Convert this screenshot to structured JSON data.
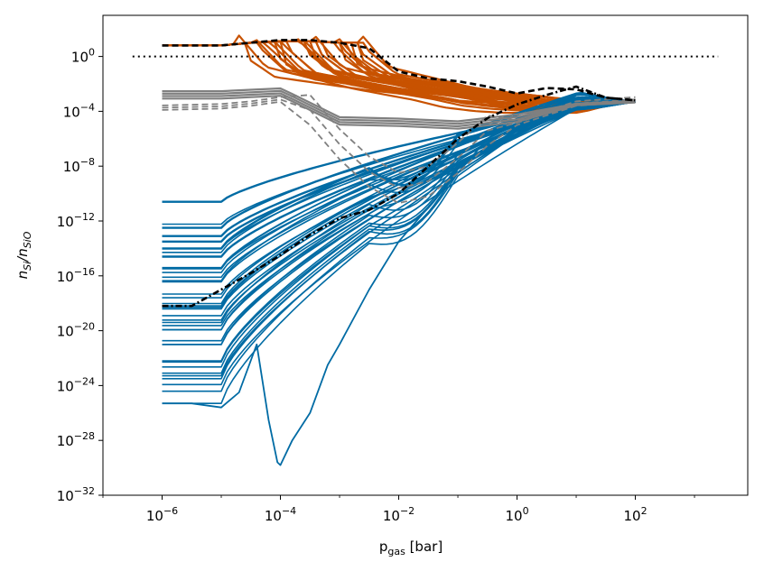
{
  "chart_data": {
    "type": "line",
    "title": "",
    "xlabel": "p",
    "xlabel_sub": "gas",
    "xlabel_unit": " [bar]",
    "ylabel": "n",
    "ylabel_sub1": "Si",
    "ylabel_sep": "/n",
    "ylabel_sub2": "SiO",
    "xscale": "log",
    "yscale": "log",
    "xlim_log10": [
      -7,
      3.9
    ],
    "ylim_log10": [
      -32,
      3
    ],
    "x_ticks_log10": [
      -6,
      -4,
      -2,
      0,
      2
    ],
    "y_ticks_log10": [
      0,
      -4,
      -8,
      -12,
      -16,
      -20,
      -24,
      -28,
      -32
    ],
    "tick_base": "10",
    "colors": {
      "orange": "#c85200",
      "blue": "#006ba4",
      "gray": "#808080",
      "black": "#000000"
    },
    "reference_line": {
      "name": "unity ratio",
      "y_log10": 0,
      "x_log10": [
        -6.5,
        3.4
      ],
      "style": "dotted",
      "color": "black"
    },
    "series": [
      {
        "name": "orange ensemble",
        "color": "orange",
        "style": "solid",
        "count": 30,
        "x_log10": [
          -6,
          -5,
          -4.5,
          -4,
          -3.5,
          -3,
          -2.5,
          -2,
          -1.5,
          -1,
          -0.5,
          0,
          0.5,
          1,
          1.5,
          2
        ],
        "y_log10": [
          0.8,
          0.8,
          1.0,
          1.1,
          1.1,
          1.0,
          0.7,
          -1.2,
          -1.6,
          -2.0,
          -2.4,
          -2.7,
          -3.0,
          -3.4,
          -3.6,
          -3.7
        ],
        "spread": "shape variants descend between -3.8 and -1.5 in log10 p"
      },
      {
        "name": "blue ensemble",
        "color": "blue",
        "style": "solid",
        "count": 40,
        "start_values_log10": [
          -10.6,
          -12.5,
          -13.1,
          -13.5,
          -14.0,
          -14.6,
          -15.4,
          -16.1,
          -17.6,
          -18.3,
          -18.9,
          -19.4,
          -21.0,
          -22.2,
          -23.1,
          -25.3
        ],
        "end_value_log10": -3.3,
        "special_curve": {
          "name": "deep minimum curve",
          "min_x_log10": -4.0,
          "min_y_log10": -29.8
        }
      },
      {
        "name": "gray solid",
        "color": "gray",
        "style": "solid",
        "count": 4,
        "x_log10": [
          -6,
          -5,
          -4.5,
          -4,
          -3.8,
          -3,
          -2,
          -1,
          0,
          1,
          2
        ],
        "y_log10": [
          -2.8,
          -2.8,
          -2.7,
          -2.6,
          -3.0,
          -4.7,
          -4.8,
          -5.0,
          -4.5,
          -3.5,
          -3.3
        ]
      },
      {
        "name": "gray dashed",
        "color": "gray",
        "style": "dashed",
        "count": 3,
        "x_log10": [
          -6,
          -5,
          -4.5,
          -4,
          -3.5,
          -3,
          -2.5,
          -2,
          -1.5,
          -1,
          -0.5,
          0,
          1,
          2
        ],
        "y_log10": [
          -3.9,
          -3.8,
          -3.6,
          -3.3,
          -5.0,
          -7.5,
          -9.5,
          -10.7,
          -10.2,
          -8.5,
          -6.5,
          -5.0,
          -3.6,
          -3.3
        ]
      },
      {
        "name": "black dashed median",
        "color": "black",
        "style": "dashed",
        "x_log10": [
          -6,
          -5,
          -4.5,
          -4,
          -3.5,
          -3,
          -2.5,
          -2,
          -1.5,
          -1,
          -0.5,
          0,
          0.5,
          1,
          1.5,
          2
        ],
        "y_log10": [
          0.8,
          0.8,
          1.0,
          1.2,
          1.2,
          1.0,
          0.6,
          -1.1,
          -1.6,
          -1.8,
          -2.2,
          -2.7,
          -2.3,
          -2.4,
          -3.0,
          -3.2
        ]
      },
      {
        "name": "black dash-dot median",
        "color": "black",
        "style": "dashdot",
        "x_log10": [
          -6,
          -5.5,
          -5,
          -4.5,
          -4,
          -3.5,
          -3,
          -2.5,
          -2,
          -1.5,
          -1,
          -0.5,
          0,
          0.5,
          1,
          1.5,
          2
        ],
        "y_log10": [
          -18.2,
          -18.2,
          -17.0,
          -15.8,
          -14.5,
          -13.0,
          -11.8,
          -11.2,
          -10.0,
          -8.0,
          -6.0,
          -4.5,
          -3.5,
          -2.8,
          -2.2,
          -3.0,
          -3.2
        ]
      }
    ]
  }
}
